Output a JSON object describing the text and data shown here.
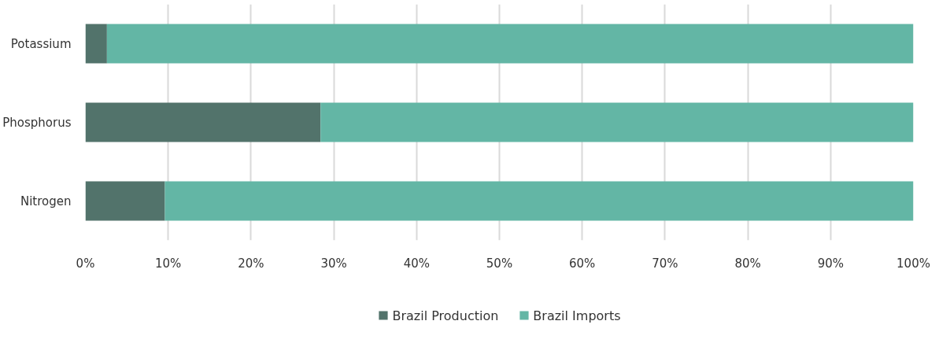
{
  "chart_data": {
    "type": "bar",
    "orientation": "horizontal",
    "stacked": true,
    "categories": [
      "Potassium",
      "Phosphorus",
      "Nitrogen"
    ],
    "series": [
      {
        "name": "Brazil Production",
        "color": "#52736b",
        "values": [
          2.6,
          28.4,
          9.6
        ]
      },
      {
        "name": "Brazil Imports",
        "color": "#63b6a5",
        "values": [
          97.4,
          71.6,
          90.4
        ]
      }
    ],
    "xlim": [
      0,
      100
    ],
    "xticks": [
      {
        "value": 0,
        "label": "0%"
      },
      {
        "value": 10,
        "label": "10%"
      },
      {
        "value": 20,
        "label": "20%"
      },
      {
        "value": 30,
        "label": "30%"
      },
      {
        "value": 40,
        "label": "40%"
      },
      {
        "value": 50,
        "label": "50%"
      },
      {
        "value": 60,
        "label": "60%"
      },
      {
        "value": 70,
        "label": "70%"
      },
      {
        "value": 80,
        "label": "80%"
      },
      {
        "value": 90,
        "label": "90%"
      },
      {
        "value": 100,
        "label": "100%"
      }
    ],
    "grid": "x",
    "legend": "bottom"
  }
}
